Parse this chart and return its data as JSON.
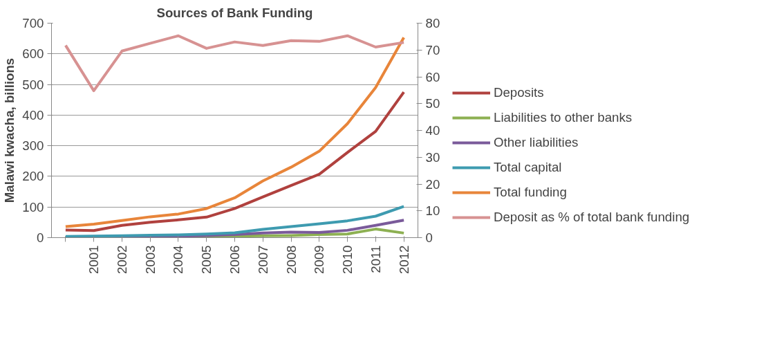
{
  "chart_data": {
    "type": "line",
    "title": "Sources of Bank Funding",
    "ylabel": "Malawi kwacha, billions",
    "categories": [
      null,
      "2001",
      "2002",
      "2003",
      "2004",
      "2005",
      "2006",
      "2007",
      "2008",
      "2009",
      "2010",
      "2011",
      "2012"
    ],
    "series": [
      {
        "name": "Deposits",
        "color": "#b0413e",
        "values": [
          25,
          23,
          40,
          50,
          58,
          67,
          95,
          133,
          170,
          207,
          278,
          347,
          475
        ]
      },
      {
        "name": "Liabilities to other banks",
        "color": "#8db052",
        "values": [
          null,
          null,
          null,
          1,
          1,
          3,
          5,
          6,
          7,
          10,
          12,
          28,
          15
        ]
      },
      {
        "name": "Other liabilities",
        "color": "#7a5a9a",
        "values": [
          1,
          2,
          3,
          4,
          5,
          7,
          10,
          15,
          18,
          17,
          24,
          40,
          57
        ]
      },
      {
        "name": "Total capital",
        "color": "#3e9bb0",
        "values": [
          4,
          5,
          6,
          8,
          9,
          12,
          16,
          27,
          36,
          45,
          55,
          70,
          102
        ]
      },
      {
        "name": "Total funding",
        "color": "#e8853a",
        "values": [
          36,
          44,
          56,
          68,
          77,
          95,
          130,
          185,
          230,
          282,
          372,
          490,
          653
        ]
      },
      {
        "name": "Deposit as % of total bank funding",
        "color": "#d79292",
        "axis": "y2",
        "values": [
          71.7,
          54.8,
          69.6,
          72.5,
          75.3,
          70.6,
          73,
          71.7,
          73.5,
          73.2,
          75.3,
          71.1,
          72.8
        ]
      }
    ],
    "ylim": [
      0,
      700
    ],
    "yticks": [
      0,
      100,
      200,
      300,
      400,
      500,
      600,
      700
    ],
    "y2lim": [
      0,
      80
    ],
    "y2ticks": [
      0,
      10,
      20,
      30,
      40,
      50,
      60,
      70,
      80
    ],
    "grid": "y",
    "legend": "right",
    "marker": "none",
    "line_style": "solid"
  }
}
